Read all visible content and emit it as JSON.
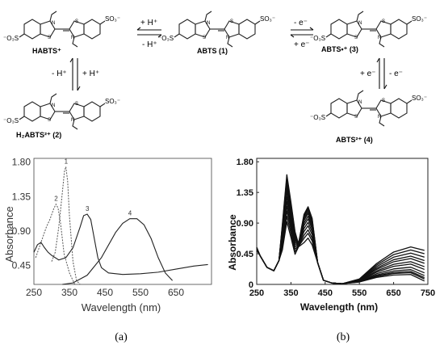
{
  "scheme": {
    "species": [
      {
        "id": "habts",
        "label": "HABTS⁺"
      },
      {
        "id": "abts1",
        "label": "ABTS (1)"
      },
      {
        "id": "abts3",
        "label": "ABTS•⁺ (3)"
      },
      {
        "id": "h2abts2",
        "label": "H₂ABTS²⁺ (2)"
      },
      {
        "id": "abts4",
        "label": "ABTS²⁺ (4)"
      }
    ],
    "arrows": {
      "habts_abts_top": "+ H⁺",
      "habts_abts_bottom": "- H⁺",
      "abts_rad_top": "- e⁻",
      "abts_rad_bottom": "+ e⁻",
      "habts_h2_left": "- H⁺",
      "habts_h2_right": "+ H⁺",
      "rad_dic_left": "+ e⁻",
      "rad_dic_right": "- e⁻"
    }
  },
  "panel_labels": {
    "a": "(a)",
    "b": "(b)"
  },
  "chart_data": [
    {
      "type": "line",
      "panel": "(a)",
      "xlabel": "Wavelength (nm)",
      "ylabel": "Absorbance",
      "xlim": [
        250,
        750
      ],
      "ylim": [
        0.2,
        1.85
      ],
      "xticks": [
        "250",
        "350",
        "450",
        "550",
        "650"
      ],
      "yticks": [
        "0.45",
        "0.90",
        "1.35",
        "1.80"
      ],
      "series": [
        {
          "name": "1",
          "style": "dotted",
          "x": [
            300,
            310,
            320,
            330,
            336,
            340,
            345,
            350,
            360,
            370,
            380
          ],
          "y": [
            0.5,
            0.62,
            0.95,
            1.4,
            1.68,
            1.74,
            1.55,
            1.1,
            0.5,
            0.25,
            0.2
          ]
        },
        {
          "name": "2",
          "style": "dotted",
          "x": [
            255,
            270,
            285,
            295,
            305,
            312,
            318,
            325,
            335,
            350,
            365
          ],
          "y": [
            0.55,
            0.75,
            0.95,
            1.05,
            1.18,
            1.25,
            1.2,
            1.0,
            0.6,
            0.35,
            0.2
          ]
        },
        {
          "name": "3",
          "style": "solid",
          "x": [
            250,
            260,
            270,
            280,
            290,
            300,
            320,
            340,
            360,
            380,
            390,
            400,
            410,
            420,
            430,
            440,
            460,
            500,
            550,
            600,
            650,
            700,
            740
          ],
          "y": [
            0.62,
            0.72,
            0.75,
            0.68,
            0.62,
            0.58,
            0.52,
            0.55,
            0.68,
            0.95,
            1.1,
            1.12,
            1.05,
            0.8,
            0.55,
            0.42,
            0.35,
            0.33,
            0.34,
            0.36,
            0.4,
            0.44,
            0.46
          ]
        },
        {
          "name": "4",
          "style": "solid",
          "x": [
            330,
            360,
            400,
            440,
            480,
            500,
            520,
            540,
            560,
            580,
            600,
            620,
            640
          ],
          "y": [
            0.2,
            0.22,
            0.32,
            0.55,
            0.88,
            1.0,
            1.06,
            1.06,
            0.98,
            0.8,
            0.55,
            0.35,
            0.25
          ]
        }
      ]
    },
    {
      "type": "line",
      "panel": "(b)",
      "xlabel": "Wavelength (nm)",
      "ylabel": "Absorbance",
      "xlim": [
        250,
        750
      ],
      "ylim": [
        0,
        1.85
      ],
      "xticks": [
        "250",
        "350",
        "450",
        "550",
        "650",
        "750"
      ],
      "yticks": [
        "0",
        "0.45",
        "0.90",
        "1.35",
        "1.80"
      ],
      "series_count": 12,
      "peak_at_340": [
        0.92,
        1.0,
        1.08,
        1.15,
        1.22,
        1.29,
        1.36,
        1.42,
        1.48,
        1.53,
        1.57,
        1.61
      ],
      "peak_at_410": [
        0.68,
        0.75,
        0.8,
        0.86,
        0.91,
        0.96,
        1.0,
        1.04,
        1.07,
        1.1,
        1.12,
        1.14
      ],
      "tail_at_740": [
        0.05,
        0.08,
        0.1,
        0.13,
        0.17,
        0.22,
        0.26,
        0.31,
        0.35,
        0.4,
        0.45,
        0.5
      ]
    }
  ]
}
